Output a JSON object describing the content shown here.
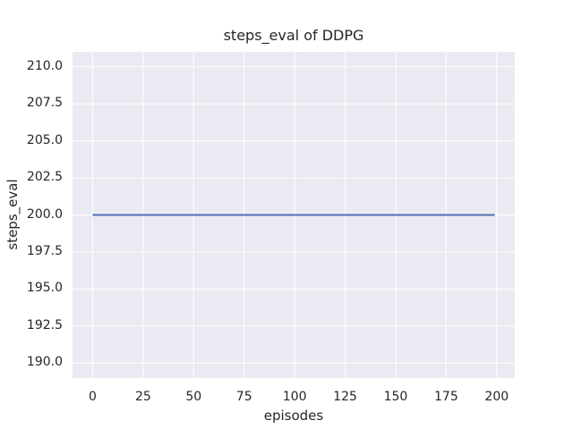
{
  "figure": {
    "background": "#ffffff"
  },
  "chart_data": {
    "type": "line",
    "title": "steps_eval of DDPG",
    "xlabel": "episodes",
    "ylabel": "steps_eval",
    "x_ticks": [
      0,
      25,
      50,
      75,
      100,
      125,
      150,
      175,
      200
    ],
    "x_tick_labels": [
      "0",
      "25",
      "50",
      "75",
      "100",
      "125",
      "150",
      "175",
      "200"
    ],
    "y_ticks": [
      190.0,
      192.5,
      195.0,
      197.5,
      200.0,
      202.5,
      205.0,
      207.5,
      210.0
    ],
    "y_tick_labels": [
      "190.0",
      "192.5",
      "195.0",
      "197.5",
      "200.0",
      "202.5",
      "205.0",
      "207.5",
      "210.0"
    ],
    "xlim": [
      -9.95,
      208.95
    ],
    "ylim": [
      189.0,
      211.0
    ],
    "grid": true,
    "legend": "none",
    "panel_background": "#eaeaf2",
    "gridline_color": "#ffffff",
    "text_color": "#262626",
    "series": [
      {
        "name": "steps_eval",
        "color": "#4c72b0",
        "x": [
          0,
          199
        ],
        "y": [
          200.0,
          200.0
        ]
      }
    ]
  }
}
